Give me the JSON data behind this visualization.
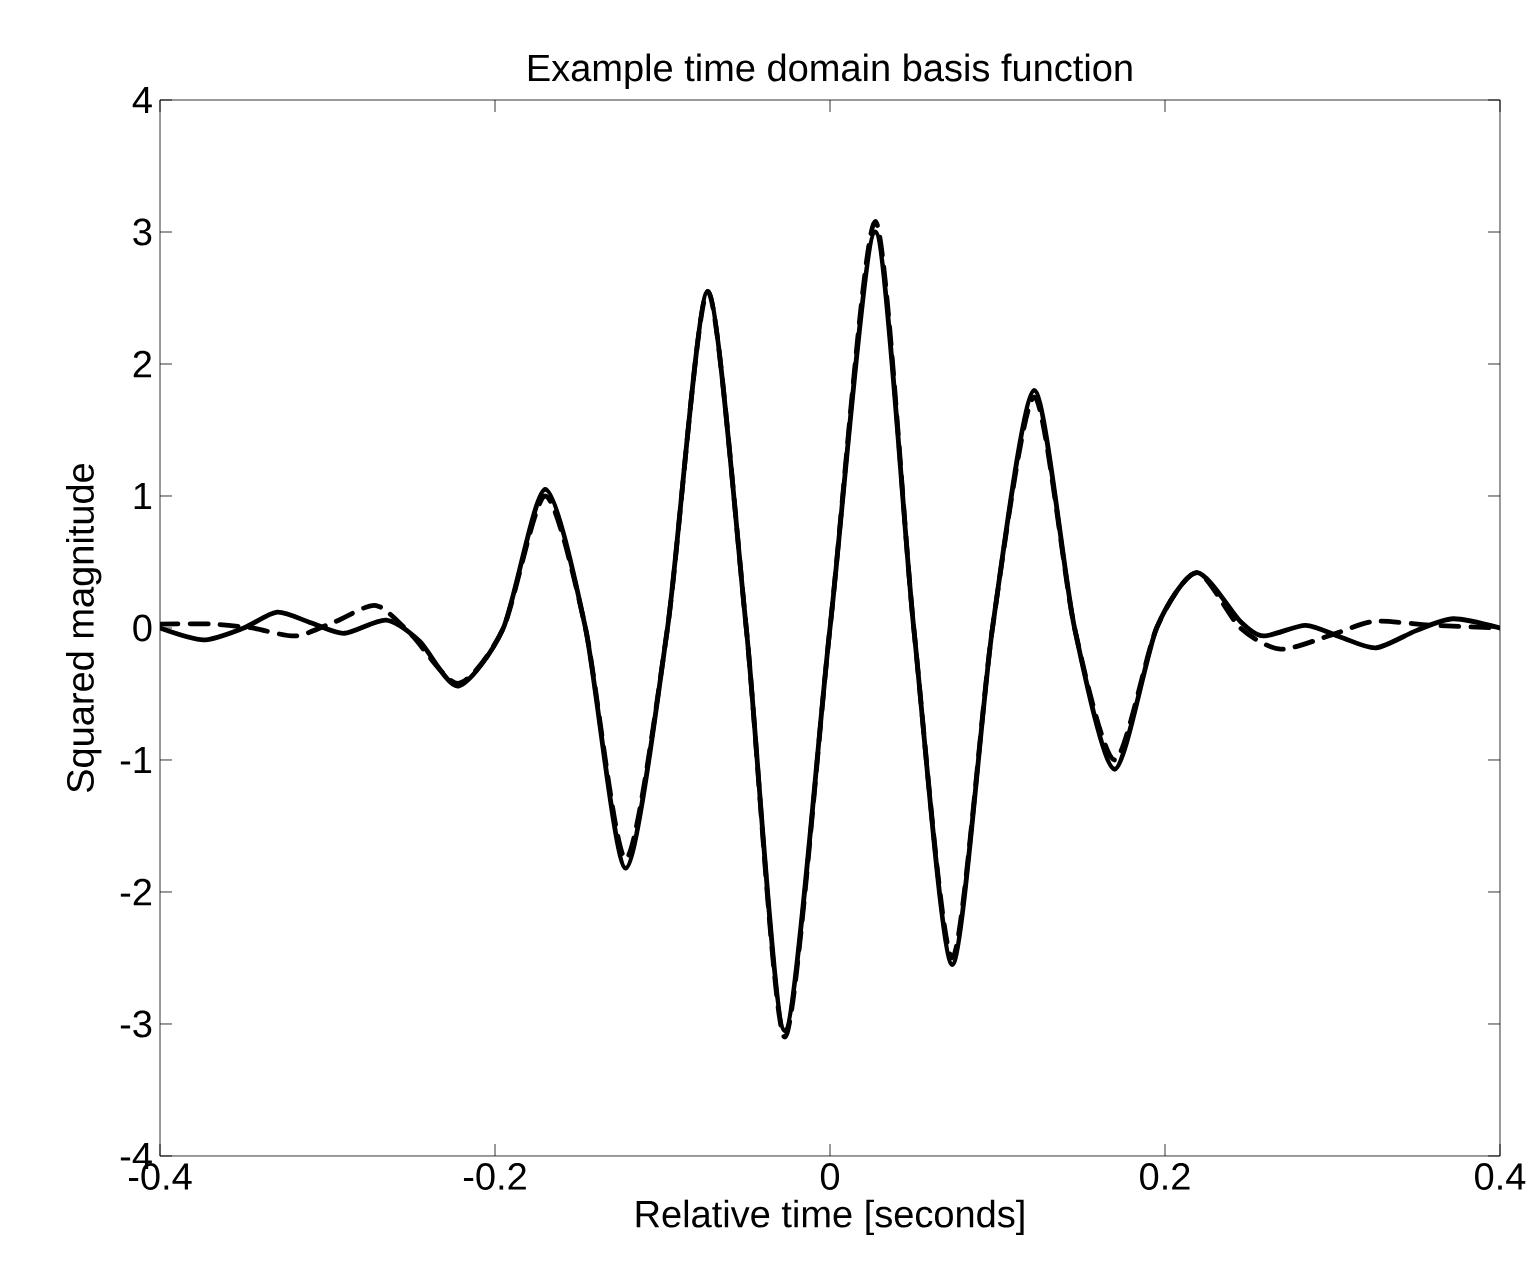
{
  "chart_data": {
    "type": "line",
    "title": "Example time domain basis function",
    "xlabel": "Relative time [seconds]",
    "ylabel": "Squared magnitude",
    "xlim": [
      -0.4,
      0.4
    ],
    "ylim": [
      -4,
      4
    ],
    "xticks": [
      -0.4,
      -0.2,
      0,
      0.2,
      0.4
    ],
    "yticks": [
      -4,
      -3,
      -2,
      -1,
      0,
      1,
      2,
      3,
      4
    ],
    "grid": false,
    "series": [
      {
        "color": "#000000",
        "line_style": "solid",
        "x": [
          -0.4,
          -0.374,
          -0.35,
          -0.33,
          -0.31,
          -0.29,
          -0.265,
          -0.245,
          -0.222,
          -0.195,
          -0.17,
          -0.146,
          -0.122,
          -0.097,
          -0.073,
          -0.05,
          -0.027,
          0,
          0.027,
          0.05,
          0.073,
          0.097,
          0.122,
          0.146,
          0.17,
          0.195,
          0.219,
          0.245,
          0.259,
          0.284,
          0.305,
          0.326,
          0.35,
          0.372,
          0.4
        ],
        "values": [
          0,
          -0.09,
          0,
          0.12,
          0.04,
          -0.04,
          0.06,
          -0.1,
          -0.44,
          0,
          1.05,
          0,
          -1.82,
          0,
          2.55,
          0,
          -3.05,
          0,
          3.0,
          0,
          -2.55,
          0,
          1.8,
          0,
          -1.07,
          0,
          0.42,
          0.05,
          -0.06,
          0.02,
          -0.07,
          -0.15,
          -0.02,
          0.07,
          0
        ]
      },
      {
        "color": "#000000",
        "line_style": "dashed",
        "x": [
          -0.4,
          -0.37,
          -0.345,
          -0.319,
          -0.295,
          -0.271,
          -0.25,
          -0.222,
          -0.195,
          -0.17,
          -0.146,
          -0.122,
          -0.097,
          -0.073,
          -0.05,
          -0.027,
          0,
          0.027,
          0.05,
          0.073,
          0.097,
          0.122,
          0.146,
          0.17,
          0.195,
          0.219,
          0.245,
          0.269,
          0.3,
          0.325,
          0.36,
          0.4
        ],
        "values": [
          0.03,
          0.03,
          0,
          -0.06,
          0.05,
          0.17,
          -0.05,
          -0.42,
          0,
          1.0,
          0,
          -1.75,
          0,
          2.55,
          0,
          -3.1,
          0,
          3.08,
          0,
          -2.5,
          0,
          1.75,
          0,
          -1.0,
          0,
          0.42,
          0,
          -0.16,
          -0.05,
          0.05,
          0.02,
          0
        ]
      }
    ]
  }
}
